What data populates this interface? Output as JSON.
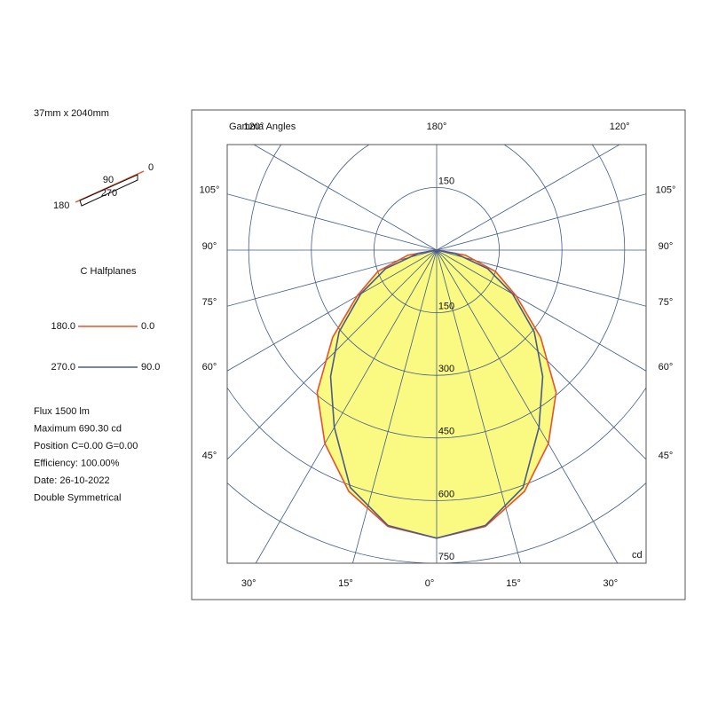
{
  "chart_data": {
    "type": "polar",
    "dimensions": "37mm x 2040mm",
    "orientation_labels": {
      "c0": "0",
      "c90": "90",
      "c270": "270",
      "c180": "180"
    },
    "legend_title": "C Halfplanes",
    "info": [
      "Flux 1500  lm",
      "Maximum 690.30  cd",
      "Position C=0.00 G=0.00",
      "Efficiency: 100.00%",
      "Date: 26-10-2022",
      "Double Symmetrical"
    ],
    "angle_title": "Gamma Angles",
    "unit": "cd",
    "x": [
      0,
      10,
      20,
      30,
      40,
      50,
      60,
      70,
      80,
      90
    ],
    "series": [
      {
        "legend_left": "180.0",
        "legend_right": "0.0",
        "color": "#e8502a",
        "values": [
          690,
          672,
          615,
          535,
          445,
          325,
          220,
          150,
          70,
          0
        ]
      },
      {
        "legend_left": "270.0",
        "legend_right": "90.0",
        "color": "#4a5a8a",
        "values": [
          690,
          670,
          605,
          490,
          395,
          305,
          210,
          130,
          45,
          0
        ]
      }
    ],
    "fill": "#fafa82",
    "rlim": [
      0,
      750
    ],
    "rticks": [
      150,
      300,
      450,
      600,
      750
    ],
    "angle_ticks": [
      {
        "value": 0,
        "label": "0°"
      },
      {
        "value": 15,
        "label": "15°"
      },
      {
        "value": 30,
        "label": "30°"
      },
      {
        "value": 45,
        "label": "45°"
      },
      {
        "value": 60,
        "label": "60°"
      },
      {
        "value": 75,
        "label": "75°"
      },
      {
        "value": 90,
        "label": "90°"
      },
      {
        "value": 105,
        "label": "105°"
      },
      {
        "value": 120,
        "label": "120°"
      },
      {
        "value": 180,
        "label": "180°"
      }
    ]
  }
}
